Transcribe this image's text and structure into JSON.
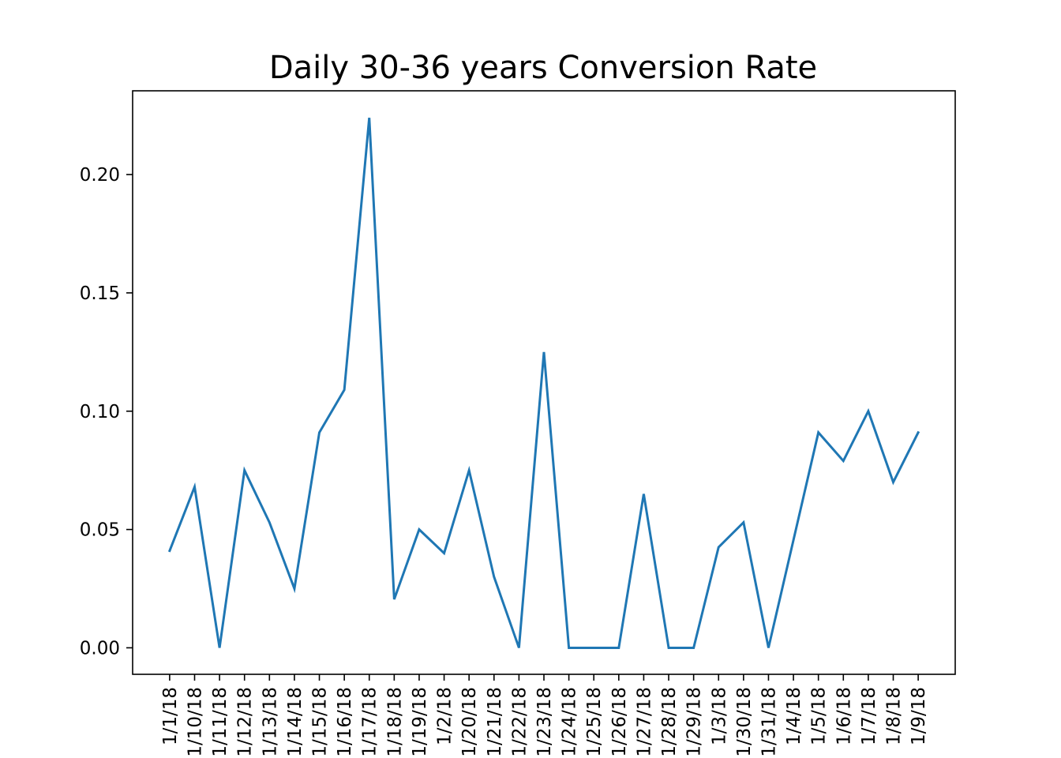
{
  "chart_data": {
    "type": "line",
    "title": "Daily 30-36 years Conversion Rate",
    "xlabel": "",
    "ylabel": "",
    "x": [
      "1/1/18",
      "1/10/18",
      "1/11/18",
      "1/12/18",
      "1/13/18",
      "1/14/18",
      "1/15/18",
      "1/16/18",
      "1/17/18",
      "1/18/18",
      "1/19/18",
      "1/2/18",
      "1/20/18",
      "1/21/18",
      "1/22/18",
      "1/23/18",
      "1/24/18",
      "1/25/18",
      "1/26/18",
      "1/27/18",
      "1/28/18",
      "1/29/18",
      "1/3/18",
      "1/30/18",
      "1/31/18",
      "1/4/18",
      "1/5/18",
      "1/6/18",
      "1/7/18",
      "1/8/18",
      "1/9/18"
    ],
    "series": [
      {
        "color": "#1f77b4",
        "values": [
          0.041,
          0.068,
          0.0,
          0.075,
          0.053,
          0.025,
          0.091,
          0.109,
          0.224,
          0.0205,
          0.05,
          0.04,
          0.075,
          0.03,
          0.0,
          0.125,
          0.0,
          0.0,
          0.0,
          0.065,
          0.0,
          0.0,
          0.0425,
          0.053,
          0.0,
          0.0455,
          0.091,
          0.079,
          0.1,
          0.07,
          0.091
        ]
      }
    ],
    "yticks": [
      "0.00",
      "0.05",
      "0.10",
      "0.15",
      "0.20"
    ],
    "ylim": [
      -0.0112,
      0.2354
    ],
    "grid": false,
    "legend": "none"
  }
}
